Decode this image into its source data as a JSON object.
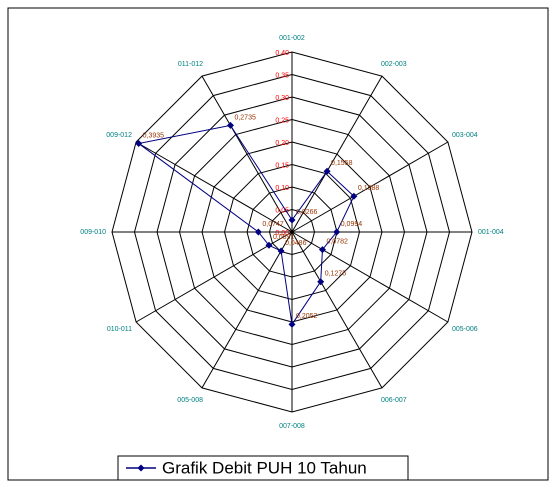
{
  "chart_data": {
    "type": "radar",
    "categories": [
      "001-002",
      "002-003",
      "003-004",
      "001-004",
      "005-006",
      "006-007",
      "007-008",
      "005-008",
      "010-011",
      "009-010",
      "009-012",
      "011-012"
    ],
    "series": [
      {
        "name": "Grafik Debit PUH 10 Tahun",
        "color": "#000080",
        "values": [
          0.0266,
          0.1558,
          0.1588,
          0.0994,
          0.0782,
          0.1275,
          0.2052,
          0.0486,
          0.0591,
          0.0747,
          0.3935,
          0.2735
        ],
        "value_labels": [
          "0,0266",
          "0,1558",
          "0,1588",
          "0,0994",
          "0,0782",
          "0,1275",
          "0,2052",
          "0,0486",
          "0,0591",
          "0,0747",
          "0,3935",
          "0,2735"
        ]
      }
    ],
    "ylim": [
      0,
      0.4
    ],
    "yticks": [
      {
        "value": 0,
        "label": "0,00"
      },
      {
        "value": 0.05,
        "label": "0,05"
      },
      {
        "value": 0.1,
        "label": "0,10"
      },
      {
        "value": 0.15,
        "label": "0,15"
      },
      {
        "value": 0.2,
        "label": "0,20"
      },
      {
        "value": 0.25,
        "label": "0,25"
      },
      {
        "value": 0.3,
        "label": "0,30"
      },
      {
        "value": 0.35,
        "label": "0,35"
      },
      {
        "value": 0.4,
        "label": "0,40"
      }
    ],
    "grid": true,
    "legend": "bottom"
  }
}
